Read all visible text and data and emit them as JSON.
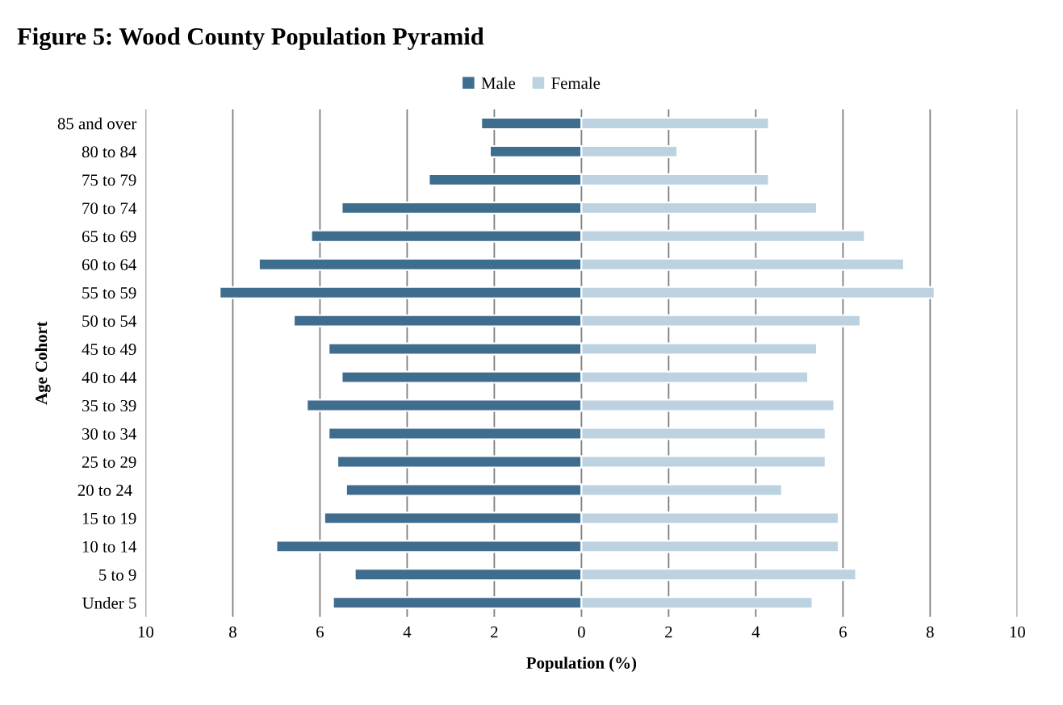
{
  "chart_data": {
    "type": "bar",
    "orientation": "horizontal",
    "title": "Figure 5: Wood County Population Pyramid",
    "xlabel": "Population (%)",
    "ylabel": "Age Cohort",
    "categories": [
      "85 and over",
      "80 to 84",
      "75 to 79",
      "70 to 74",
      "65 to 69",
      "60 to 64",
      "55 to 59",
      "50 to 54",
      "45 to 49",
      "40 to 44",
      "35 to 39",
      "30 to 34",
      "25 to 29",
      "20 to 24 ",
      "15 to 19",
      "10 to 14",
      "5 to 9",
      "Under 5"
    ],
    "series": [
      {
        "name": "Male",
        "color": "#3f6d8e",
        "values": [
          -2.3,
          -2.1,
          -3.5,
          -5.5,
          -6.2,
          -7.4,
          -8.3,
          -6.6,
          -5.8,
          -5.5,
          -6.3,
          -5.8,
          -5.6,
          -5.4,
          -5.9,
          -7.0,
          -5.2,
          -5.7
        ]
      },
      {
        "name": "Female",
        "color": "#bcd2e1",
        "values": [
          4.3,
          2.2,
          4.3,
          5.4,
          6.5,
          7.4,
          8.1,
          6.4,
          5.4,
          5.2,
          5.8,
          5.6,
          5.6,
          4.6,
          5.9,
          5.9,
          6.3,
          5.3
        ]
      }
    ],
    "xlim": [
      -10,
      10
    ],
    "xticks": [
      {
        "value": -10,
        "label": "10"
      },
      {
        "value": -8,
        "label": "8"
      },
      {
        "value": -6,
        "label": "6"
      },
      {
        "value": -4,
        "label": "4"
      },
      {
        "value": -2,
        "label": "2"
      },
      0,
      2,
      4,
      6,
      8,
      10
    ],
    "stacked": true,
    "grid": "x",
    "legend": "top"
  }
}
